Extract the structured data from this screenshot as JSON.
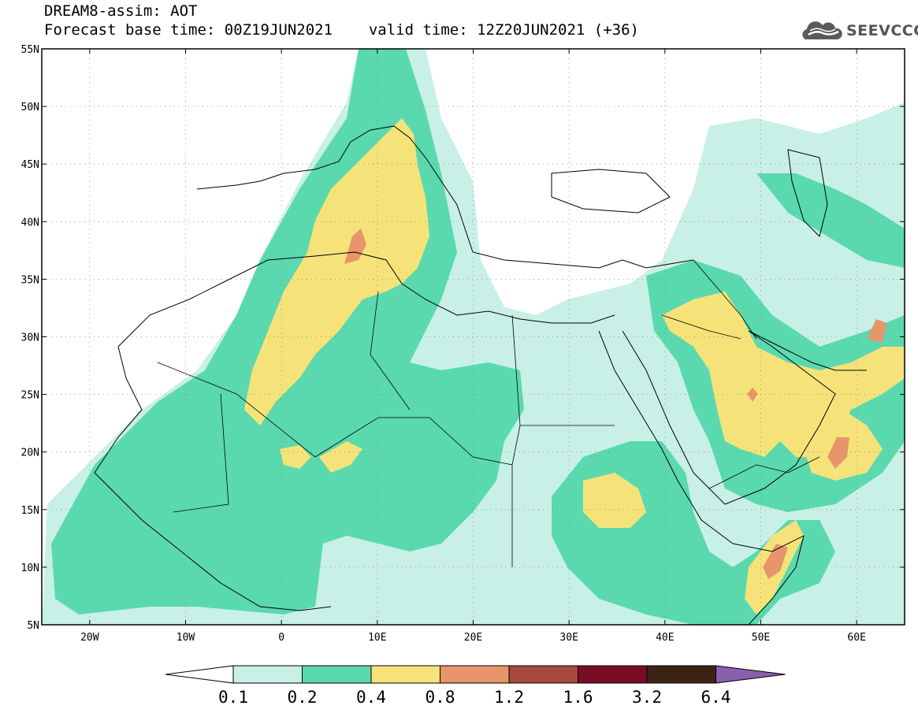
{
  "title_line1": "DREAM8-assim: AOT",
  "title_line2_left": "Forecast base time: 00Z19JUN2021",
  "title_line2_right": "valid time: 12Z20JUN2021 (+36)",
  "logo_text": "SEEVCCC",
  "colors": {
    "c0": "#c8f0e6",
    "c1": "#5ad9ae",
    "c2": "#f5e37a",
    "c3": "#e8956b",
    "c4": "#a4493c",
    "c5": "#7a0d26",
    "c6": "#3b2414",
    "c7": "#8a5fae"
  },
  "map": {
    "lon_range": [
      -25,
      65
    ],
    "lat_range": [
      5,
      55
    ],
    "lat_ticks": [
      {
        "v": 55,
        "t": "55N"
      },
      {
        "v": 50,
        "t": "50N"
      },
      {
        "v": 45,
        "t": "45N"
      },
      {
        "v": 40,
        "t": "40N"
      },
      {
        "v": 35,
        "t": "35N"
      },
      {
        "v": 30,
        "t": "30N"
      },
      {
        "v": 25,
        "t": "25N"
      },
      {
        "v": 20,
        "t": "20N"
      },
      {
        "v": 15,
        "t": "15N"
      },
      {
        "v": 10,
        "t": "10N"
      },
      {
        "v": 5,
        "t": "5N"
      }
    ],
    "lon_ticks": [
      {
        "v": -20,
        "t": "20W"
      },
      {
        "v": -10,
        "t": "10W"
      },
      {
        "v": 0,
        "t": "0"
      },
      {
        "v": 10,
        "t": "10E"
      },
      {
        "v": 20,
        "t": "20E"
      },
      {
        "v": 30,
        "t": "30E"
      },
      {
        "v": 40,
        "t": "40E"
      },
      {
        "v": 50,
        "t": "50E"
      },
      {
        "v": 60,
        "t": "60E"
      }
    ],
    "grid": "dotted"
  },
  "colorbar": {
    "labels": [
      "0.1",
      "0.2",
      "0.4",
      "0.8",
      "1.2",
      "1.6",
      "3.2",
      "6.4"
    ]
  }
}
